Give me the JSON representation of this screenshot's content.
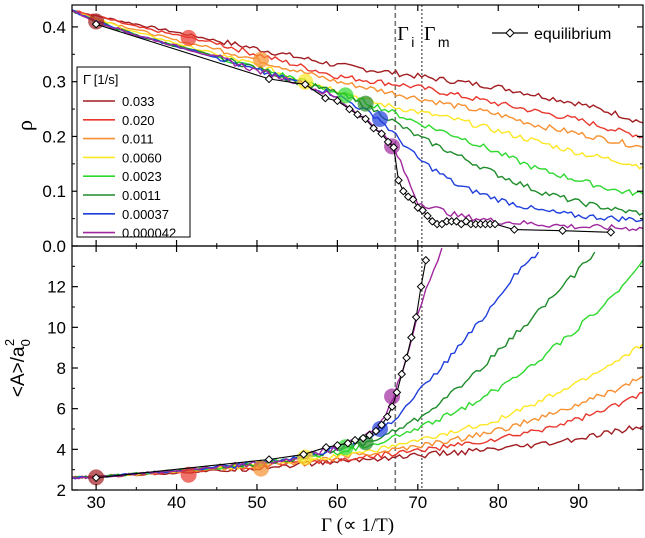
{
  "chart_data": [
    {
      "type": "line",
      "panel": "top",
      "ylabel": "ρ",
      "xlim": [
        27,
        98
      ],
      "ylim": [
        0.0,
        0.44
      ],
      "yticks": [
        0.0,
        0.1,
        0.2,
        0.3,
        0.4
      ],
      "ytick_labels": [
        "0.0",
        "0.1",
        "0.2",
        "0.3",
        "0.4"
      ],
      "legend_title": "Γ̇ [1/s]",
      "legend_placement": "left",
      "equilibrium_legend": "equilibrium",
      "equilibrium_legend_placement": "top-right",
      "vlines": [
        {
          "label": "Γ",
          "sub": "i",
          "x": 67.2,
          "style": "dashed"
        },
        {
          "label": "Γ",
          "sub": "m",
          "x": 70.5,
          "style": "dotted"
        }
      ],
      "series": [
        {
          "name": "0.033",
          "color": "#a11d21",
          "x": [
            27,
            30,
            35,
            40,
            45,
            50,
            55,
            60,
            65,
            70,
            75,
            80,
            85,
            90,
            95,
            98
          ],
          "y": [
            0.43,
            0.42,
            0.405,
            0.39,
            0.375,
            0.36,
            0.345,
            0.33,
            0.32,
            0.31,
            0.3,
            0.29,
            0.275,
            0.26,
            0.24,
            0.225
          ]
        },
        {
          "name": "0.020",
          "color": "#e8382e",
          "x": [
            27,
            30,
            35,
            40,
            45,
            50,
            55,
            60,
            65,
            70,
            75,
            80,
            85,
            90,
            95,
            98
          ],
          "y": [
            0.43,
            0.42,
            0.4,
            0.385,
            0.37,
            0.35,
            0.33,
            0.31,
            0.3,
            0.29,
            0.275,
            0.26,
            0.245,
            0.23,
            0.21,
            0.2
          ]
        },
        {
          "name": "0.011",
          "color": "#f79030",
          "x": [
            27,
            30,
            35,
            40,
            45,
            50,
            55,
            60,
            65,
            70,
            75,
            80,
            85,
            90,
            95,
            98
          ],
          "y": [
            0.43,
            0.415,
            0.395,
            0.375,
            0.36,
            0.34,
            0.32,
            0.3,
            0.285,
            0.27,
            0.255,
            0.24,
            0.22,
            0.205,
            0.19,
            0.18
          ]
        },
        {
          "name": "0.0060",
          "color": "#fde724",
          "x": [
            27,
            30,
            35,
            40,
            45,
            50,
            55,
            60,
            65,
            70,
            75,
            80,
            85,
            90,
            95,
            98
          ],
          "y": [
            0.43,
            0.415,
            0.39,
            0.37,
            0.35,
            0.33,
            0.305,
            0.285,
            0.26,
            0.245,
            0.23,
            0.21,
            0.19,
            0.17,
            0.155,
            0.145
          ]
        },
        {
          "name": "0.0023",
          "color": "#2ed92e",
          "x": [
            27,
            30,
            35,
            40,
            45,
            50,
            55,
            60,
            65,
            70,
            75,
            80,
            85,
            90,
            95,
            98
          ],
          "y": [
            0.43,
            0.41,
            0.385,
            0.365,
            0.345,
            0.325,
            0.305,
            0.28,
            0.255,
            0.225,
            0.2,
            0.17,
            0.14,
            0.12,
            0.1,
            0.095
          ]
        },
        {
          "name": "0.0011",
          "color": "#1f8c2a",
          "x": [
            27,
            30,
            35,
            40,
            45,
            50,
            55,
            60,
            65,
            70,
            75,
            80,
            85,
            90,
            95,
            98
          ],
          "y": [
            0.43,
            0.41,
            0.385,
            0.365,
            0.345,
            0.325,
            0.3,
            0.28,
            0.245,
            0.2,
            0.165,
            0.13,
            0.1,
            0.08,
            0.065,
            0.06
          ]
        },
        {
          "name": "0.00037",
          "color": "#1f3fdc",
          "x": [
            27,
            30,
            35,
            40,
            45,
            50,
            55,
            60,
            65,
            70,
            75,
            80,
            85,
            90,
            95,
            98
          ],
          "y": [
            0.43,
            0.41,
            0.385,
            0.365,
            0.345,
            0.32,
            0.3,
            0.275,
            0.235,
            0.16,
            0.11,
            0.085,
            0.065,
            0.055,
            0.05,
            0.048
          ]
        },
        {
          "name": "0.000042",
          "color": "#a0289e",
          "x": [
            27,
            30,
            35,
            40,
            45,
            50,
            55,
            60,
            65,
            67,
            70,
            75,
            80,
            85,
            90,
            95,
            98
          ],
          "y": [
            0.43,
            0.41,
            0.385,
            0.365,
            0.345,
            0.32,
            0.3,
            0.27,
            0.215,
            0.18,
            0.08,
            0.055,
            0.045,
            0.04,
            0.035,
            0.033,
            0.032
          ]
        },
        {
          "name": "equilibrium",
          "color": "#000000",
          "marker": "diamond",
          "x": [
            30,
            51.5,
            56,
            58.5,
            60,
            61.5,
            62.5,
            63.5,
            64.5,
            65.5,
            66.3,
            67,
            67.6,
            68.2,
            68.8,
            69.4,
            70,
            70.6,
            71.2,
            71.8,
            72.4,
            73,
            73.6,
            74.2,
            74.8,
            75.4,
            76,
            76.6,
            77.2,
            77.8,
            78.4,
            79,
            79.6,
            82,
            88,
            94
          ],
          "y": [
            0.405,
            0.305,
            0.295,
            0.27,
            0.265,
            0.25,
            0.24,
            0.232,
            0.215,
            0.205,
            0.19,
            0.18,
            0.12,
            0.1,
            0.09,
            0.085,
            0.07,
            0.065,
            0.055,
            0.045,
            0.04,
            0.04,
            0.045,
            0.045,
            0.045,
            0.04,
            0.045,
            0.04,
            0.04,
            0.04,
            0.04,
            0.04,
            0.04,
            0.03,
            0.028,
            0.025
          ]
        }
      ],
      "markers": [
        {
          "x": 30,
          "y": 0.41,
          "color": "#a11d21"
        },
        {
          "x": 41.5,
          "y": 0.38,
          "color": "#e8382e"
        },
        {
          "x": 50.5,
          "y": 0.34,
          "color": "#f79030"
        },
        {
          "x": 56,
          "y": 0.3,
          "color": "#fde724"
        },
        {
          "x": 61,
          "y": 0.275,
          "color": "#2ed92e"
        },
        {
          "x": 63.5,
          "y": 0.26,
          "color": "#1f8c2a"
        },
        {
          "x": 65.3,
          "y": 0.232,
          "color": "#1f3fdc"
        },
        {
          "x": 66.8,
          "y": 0.182,
          "color": "#a0289e"
        }
      ]
    },
    {
      "type": "line",
      "panel": "bottom",
      "xlabel": "Γ (∝ 1/T)",
      "ylabel": "<A>/a",
      "ylabel_sub": "0",
      "ylabel_sup": "2",
      "xlim": [
        27,
        98
      ],
      "ylim": [
        2.0,
        14.0
      ],
      "xticks": [
        30,
        40,
        50,
        60,
        70,
        80,
        90
      ],
      "xtick_labels": [
        "30",
        "40",
        "50",
        "60",
        "70",
        "80",
        "90"
      ],
      "yticks": [
        2,
        4,
        6,
        8,
        10,
        12
      ],
      "ytick_labels": [
        "2",
        "4",
        "6",
        "8",
        "10",
        "12"
      ],
      "series": [
        {
          "name": "0.033",
          "color": "#a11d21",
          "x": [
            27,
            30,
            35,
            40,
            45,
            50,
            55,
            60,
            65,
            70,
            75,
            80,
            85,
            90,
            95,
            98
          ],
          "y": [
            2.6,
            2.65,
            2.75,
            2.85,
            2.95,
            3.1,
            3.25,
            3.4,
            3.55,
            3.7,
            3.85,
            4.0,
            4.2,
            4.5,
            4.9,
            5.15
          ]
        },
        {
          "name": "0.020",
          "color": "#e8382e",
          "x": [
            27,
            30,
            35,
            40,
            45,
            50,
            55,
            60,
            65,
            70,
            75,
            80,
            85,
            90,
            95,
            98
          ],
          "y": [
            2.6,
            2.65,
            2.75,
            2.9,
            3.0,
            3.15,
            3.3,
            3.5,
            3.7,
            3.95,
            4.2,
            4.5,
            4.95,
            5.5,
            6.2,
            6.8
          ]
        },
        {
          "name": "0.011",
          "color": "#f79030",
          "x": [
            27,
            30,
            35,
            40,
            45,
            50,
            55,
            60,
            65,
            70,
            75,
            80,
            85,
            90,
            95,
            98
          ],
          "y": [
            2.6,
            2.65,
            2.78,
            2.9,
            3.05,
            3.2,
            3.4,
            3.6,
            3.85,
            4.15,
            4.5,
            4.95,
            5.5,
            6.2,
            7.0,
            7.6
          ]
        },
        {
          "name": "0.0060",
          "color": "#fde724",
          "x": [
            27,
            30,
            35,
            40,
            45,
            50,
            55,
            60,
            65,
            70,
            75,
            80,
            85,
            90,
            95,
            98
          ],
          "y": [
            2.6,
            2.65,
            2.78,
            2.92,
            3.08,
            3.25,
            3.45,
            3.7,
            4.0,
            4.4,
            4.9,
            5.5,
            6.3,
            7.3,
            8.4,
            9.2
          ]
        },
        {
          "name": "0.0023",
          "color": "#2ed92e",
          "x": [
            27,
            30,
            35,
            40,
            45,
            50,
            55,
            60,
            65,
            70,
            75,
            80,
            85,
            90,
            95,
            98
          ],
          "y": [
            2.6,
            2.65,
            2.8,
            2.95,
            3.1,
            3.3,
            3.55,
            3.85,
            4.3,
            5.0,
            5.9,
            7.0,
            8.4,
            10.0,
            11.8,
            13.3
          ]
        },
        {
          "name": "0.0011",
          "color": "#1f8c2a",
          "x": [
            27,
            30,
            35,
            40,
            45,
            50,
            55,
            60,
            65,
            70,
            75,
            80,
            85,
            88,
            90,
            92
          ],
          "y": [
            2.6,
            2.65,
            2.8,
            2.95,
            3.12,
            3.32,
            3.58,
            3.95,
            4.5,
            5.5,
            7.0,
            8.8,
            10.8,
            12.0,
            12.8,
            13.7
          ]
        },
        {
          "name": "0.00037",
          "color": "#1f3fdc",
          "x": [
            27,
            30,
            35,
            40,
            45,
            50,
            55,
            60,
            65,
            68,
            70,
            72,
            75,
            78,
            80,
            82,
            85
          ],
          "y": [
            2.6,
            2.65,
            2.8,
            2.95,
            3.12,
            3.32,
            3.6,
            4.0,
            4.8,
            5.8,
            6.8,
            7.6,
            9.0,
            10.4,
            11.5,
            12.6,
            13.7
          ]
        },
        {
          "name": "0.000042",
          "color": "#a0289e",
          "x": [
            27,
            30,
            35,
            40,
            45,
            50,
            55,
            60,
            63,
            65,
            66,
            67,
            68,
            69,
            70,
            71,
            72,
            73
          ],
          "y": [
            2.6,
            2.65,
            2.8,
            2.95,
            3.12,
            3.32,
            3.6,
            4.05,
            4.5,
            5.1,
            5.7,
            6.6,
            7.8,
            9.2,
            10.6,
            11.8,
            12.9,
            13.9
          ]
        },
        {
          "name": "equilibrium",
          "color": "#000000",
          "marker": "diamond",
          "x": [
            30,
            51.5,
            55.8,
            58.6,
            60,
            61.3,
            62.2,
            63.2,
            64,
            64.8,
            65.5,
            66.2,
            66.8,
            67.4,
            68,
            68.6,
            69.2,
            69.8,
            70.4,
            71
          ],
          "y": [
            2.6,
            3.5,
            3.75,
            4.1,
            4.2,
            4.3,
            4.45,
            4.55,
            4.7,
            4.9,
            5.2,
            5.6,
            6.1,
            6.8,
            7.7,
            8.5,
            9.5,
            10.5,
            12.0,
            13.3
          ]
        }
      ],
      "markers": [
        {
          "x": 30,
          "y": 2.62,
          "color": "#a11d21"
        },
        {
          "x": 41.5,
          "y": 2.75,
          "color": "#e8382e"
        },
        {
          "x": 50.5,
          "y": 3.05,
          "color": "#f79030"
        },
        {
          "x": 56,
          "y": 3.6,
          "color": "#fde724"
        },
        {
          "x": 61,
          "y": 4.1,
          "color": "#2ed92e"
        },
        {
          "x": 63.5,
          "y": 4.35,
          "color": "#1f8c2a"
        },
        {
          "x": 65.3,
          "y": 5.0,
          "color": "#1f3fdc"
        },
        {
          "x": 66.8,
          "y": 6.6,
          "color": "#a0289e"
        }
      ]
    }
  ]
}
